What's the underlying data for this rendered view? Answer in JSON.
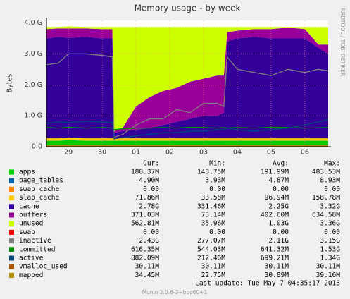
{
  "chart_data": {
    "type": "area",
    "title": "Memory usage - by week",
    "y_label": "Bytes",
    "side_note": "RRDTOOL / TOBI OETIKER",
    "x": [
      -0.65,
      -0.3,
      0,
      0.5,
      1.0,
      1.3,
      1.35,
      1.6,
      2.0,
      2.4,
      2.8,
      3.2,
      3.6,
      4.0,
      4.4,
      4.6,
      4.7,
      5.0,
      5.5,
      6.0,
      6.5,
      7.0,
      7.4,
      7.69
    ],
    "xlim": [
      -0.65,
      7.69
    ],
    "xticks": [
      {
        "value": 0,
        "label": "29"
      },
      {
        "value": 1,
        "label": "30"
      },
      {
        "value": 2,
        "label": "01"
      },
      {
        "value": 3,
        "label": "02"
      },
      {
        "value": 4,
        "label": "03"
      },
      {
        "value": 5,
        "label": "04"
      },
      {
        "value": 6,
        "label": "05"
      },
      {
        "value": 7,
        "label": "06"
      }
    ],
    "ylim": [
      0,
      4.08
    ],
    "yticks": [
      {
        "value": 0,
        "label": "0.0"
      },
      {
        "value": 1,
        "label": "1.0 G"
      },
      {
        "value": 2,
        "label": "2.0 G"
      },
      {
        "value": 3,
        "label": "3.0 G"
      },
      {
        "value": 4,
        "label": "4.0 G"
      }
    ],
    "grid": true,
    "columns": [
      "Cur:",
      "Min:",
      "Avg:",
      "Max:"
    ],
    "series": [
      {
        "name": "apps",
        "color": "#00cc00",
        "style": "stack",
        "stats": [
          "188.37M",
          "148.75M",
          "191.99M",
          "483.53M"
        ],
        "values": [
          0.19,
          0.19,
          0.21,
          0.19,
          0.19,
          0.19,
          0.19,
          0.19,
          0.19,
          0.19,
          0.19,
          0.19,
          0.19,
          0.19,
          0.19,
          0.19,
          0.19,
          0.19,
          0.19,
          0.19,
          0.19,
          0.19,
          0.19,
          0.19
        ]
      },
      {
        "name": "page_tables",
        "color": "#0066b3",
        "style": "stack",
        "stats": [
          "4.90M",
          "3.93M",
          "4.87M",
          "8.93M"
        ],
        "values": [
          0.005,
          0.005,
          0.005,
          0.005,
          0.005,
          0.005,
          0.005,
          0.005,
          0.005,
          0.005,
          0.005,
          0.005,
          0.005,
          0.005,
          0.005,
          0.005,
          0.005,
          0.005,
          0.005,
          0.005,
          0.005,
          0.005,
          0.005,
          0.005
        ]
      },
      {
        "name": "swap_cache",
        "color": "#ff8000",
        "style": "stack",
        "stats": [
          "0.00",
          "0.00",
          "0.00",
          "0.00"
        ],
        "values": [
          0,
          0,
          0,
          0,
          0,
          0,
          0,
          0,
          0,
          0,
          0,
          0,
          0,
          0,
          0,
          0,
          0,
          0,
          0,
          0,
          0,
          0,
          0,
          0
        ]
      },
      {
        "name": "slab_cache",
        "color": "#ffcc00",
        "style": "stack",
        "stats": [
          "71.86M",
          "33.58M",
          "96.94M",
          "158.78M"
        ],
        "values": [
          0.075,
          0.075,
          0.075,
          0.075,
          0.075,
          0.075,
          0.075,
          0.075,
          0.075,
          0.075,
          0.075,
          0.075,
          0.075,
          0.075,
          0.075,
          0.075,
          0.075,
          0.075,
          0.075,
          0.075,
          0.075,
          0.075,
          0.075,
          0.075
        ]
      },
      {
        "name": "cache",
        "color": "#330099",
        "style": "stack",
        "stats": [
          "2.78G",
          "331.46M",
          "2.25G",
          "3.32G"
        ],
        "values": [
          3.23,
          3.28,
          3.23,
          3.28,
          3.23,
          3.23,
          0.18,
          0.23,
          0.28,
          0.33,
          0.43,
          0.53,
          0.63,
          0.73,
          0.73,
          0.83,
          3.13,
          3.23,
          3.28,
          3.23,
          3.23,
          3.23,
          2.93,
          2.73
        ]
      },
      {
        "name": "buffers",
        "color": "#990099",
        "style": "stack",
        "stats": [
          "371.03M",
          "73.14M",
          "402.60M",
          "634.58M"
        ],
        "values": [
          0.3,
          0.27,
          0.3,
          0.27,
          0.3,
          0.3,
          0.05,
          0.1,
          0.75,
          1.0,
          1.1,
          1.1,
          1.2,
          1.2,
          1.3,
          1.2,
          0.3,
          0.25,
          0.25,
          0.3,
          0.35,
          0.3,
          0.1,
          0.3
        ]
      },
      {
        "name": "unused",
        "color": "#ccff00",
        "style": "stack",
        "stats": [
          "562.81M",
          "35.96M",
          "1.03G",
          "3.36G"
        ],
        "values": [
          0.07,
          0.05,
          0.07,
          0.05,
          0.07,
          0.07,
          3.37,
          3.27,
          2.57,
          2.27,
          2.07,
          1.97,
          1.77,
          1.67,
          1.57,
          1.57,
          0.17,
          0.12,
          0.07,
          0.07,
          0.02,
          0.07,
          0.57,
          0.57
        ]
      },
      {
        "name": "swap",
        "color": "#ff0000",
        "style": "stack",
        "stats": [
          "0.00",
          "0.00",
          "0.00",
          "0.00"
        ],
        "values": [
          0,
          0,
          0,
          0,
          0,
          0,
          0,
          0,
          0,
          0,
          0,
          0,
          0,
          0,
          0,
          0,
          0,
          0,
          0,
          0,
          0,
          0,
          0,
          0
        ]
      },
      {
        "name": "inactive",
        "color": "#808080",
        "style": "line",
        "stats": [
          "2.43G",
          "277.07M",
          "2.11G",
          "3.15G"
        ],
        "values": [
          2.65,
          2.7,
          3.0,
          3.0,
          2.95,
          2.9,
          0.3,
          0.4,
          0.7,
          0.9,
          0.9,
          1.2,
          1.1,
          1.4,
          1.4,
          1.3,
          2.9,
          2.5,
          2.4,
          2.3,
          2.5,
          2.4,
          2.5,
          2.45
        ]
      },
      {
        "name": "committed",
        "color": "#008f00",
        "style": "line",
        "stats": [
          "616.35M",
          "544.03M",
          "641.32M",
          "1.53G"
        ],
        "values": [
          0.62,
          0.6,
          0.63,
          0.6,
          0.62,
          0.6,
          0.55,
          0.58,
          0.6,
          0.6,
          0.62,
          0.6,
          0.63,
          0.62,
          0.6,
          0.62,
          0.6,
          0.62,
          0.6,
          0.63,
          0.62,
          0.6,
          0.61,
          0.62
        ]
      },
      {
        "name": "active",
        "color": "#00487d",
        "style": "line",
        "stats": [
          "882.09M",
          "212.46M",
          "699.21M",
          "1.34G"
        ],
        "values": [
          0.75,
          0.8,
          0.78,
          0.82,
          0.8,
          0.78,
          0.25,
          0.3,
          0.35,
          0.4,
          0.45,
          0.45,
          0.5,
          0.5,
          0.55,
          0.55,
          0.6,
          0.55,
          0.5,
          0.55,
          0.6,
          0.7,
          0.8,
          0.88
        ]
      },
      {
        "name": "vmalloc_used",
        "color": "#b35a00",
        "style": "line",
        "stats": [
          "30.11M",
          "30.11M",
          "30.11M",
          "30.11M"
        ],
        "values": [
          0.03,
          0.03,
          0.03,
          0.03,
          0.03,
          0.03,
          0.03,
          0.03,
          0.03,
          0.03,
          0.03,
          0.03,
          0.03,
          0.03,
          0.03,
          0.03,
          0.03,
          0.03,
          0.03,
          0.03,
          0.03,
          0.03,
          0.03,
          0.03
        ]
      },
      {
        "name": "mapped",
        "color": "#b38f00",
        "style": "line",
        "stats": [
          "34.45M",
          "22.75M",
          "30.89M",
          "39.16M"
        ],
        "values": [
          0.035,
          0.035,
          0.03,
          0.035,
          0.035,
          0.035,
          0.025,
          0.025,
          0.03,
          0.03,
          0.03,
          0.03,
          0.03,
          0.03,
          0.03,
          0.03,
          0.035,
          0.035,
          0.035,
          0.035,
          0.035,
          0.035,
          0.035,
          0.035
        ]
      }
    ],
    "last_update": "Last update: Tue May  7 04:35:17 2013",
    "footer": "Munin 2.0.6-3~bpo60+1"
  }
}
